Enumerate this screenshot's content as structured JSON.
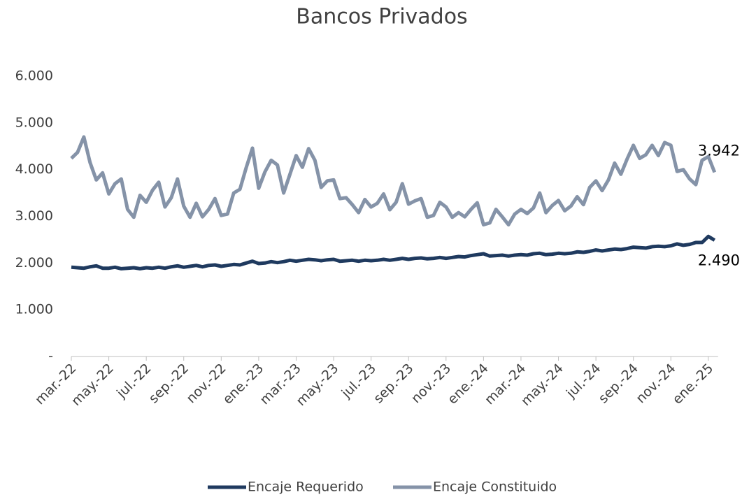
{
  "chart_data": {
    "type": "line",
    "title": "Bancos Privados",
    "categories": [
      "mar.-22",
      null,
      null,
      null,
      null,
      null,
      "may.-22",
      null,
      null,
      null,
      null,
      null,
      "jul.-22",
      null,
      null,
      null,
      null,
      null,
      "sep.-22",
      null,
      null,
      null,
      null,
      null,
      "nov.-22",
      null,
      null,
      null,
      null,
      null,
      "ene.-23",
      null,
      null,
      null,
      null,
      null,
      "mar.-23",
      null,
      null,
      null,
      null,
      null,
      "may.-23",
      null,
      null,
      null,
      null,
      null,
      "jul.-23",
      null,
      null,
      null,
      null,
      null,
      "sep.-23",
      null,
      null,
      null,
      null,
      null,
      "nov.-23",
      null,
      null,
      null,
      null,
      null,
      "ene.-24",
      null,
      null,
      null,
      null,
      null,
      "mar.-24",
      null,
      null,
      null,
      null,
      null,
      "may.-24",
      null,
      null,
      null,
      null,
      null,
      "jul.-24",
      null,
      null,
      null,
      null,
      null,
      "sep.-24",
      null,
      null,
      null,
      null,
      null,
      "nov.-24",
      null,
      null,
      null,
      null,
      null,
      "ene.-25",
      null
    ],
    "series": [
      {
        "name": "Encaje Requerido",
        "color": "#1f3a5f",
        "values": [
          1910,
          1900,
          1890,
          1920,
          1940,
          1890,
          1890,
          1910,
          1880,
          1890,
          1900,
          1880,
          1900,
          1890,
          1910,
          1890,
          1920,
          1940,
          1910,
          1930,
          1950,
          1920,
          1950,
          1960,
          1930,
          1950,
          1970,
          1960,
          2000,
          2040,
          1990,
          2000,
          2030,
          2010,
          2030,
          2060,
          2040,
          2060,
          2080,
          2070,
          2050,
          2070,
          2080,
          2040,
          2050,
          2060,
          2040,
          2060,
          2050,
          2060,
          2080,
          2060,
          2080,
          2100,
          2080,
          2100,
          2110,
          2090,
          2100,
          2120,
          2100,
          2120,
          2140,
          2130,
          2160,
          2180,
          2200,
          2150,
          2160,
          2170,
          2150,
          2170,
          2180,
          2170,
          2200,
          2210,
          2180,
          2190,
          2210,
          2200,
          2210,
          2240,
          2230,
          2250,
          2280,
          2260,
          2280,
          2300,
          2290,
          2310,
          2340,
          2330,
          2320,
          2350,
          2360,
          2350,
          2370,
          2410,
          2380,
          2400,
          2440,
          2440,
          2570,
          2490
        ],
        "value_labels": [
          null,
          null,
          null,
          null,
          null,
          null,
          null,
          null,
          null,
          null,
          null,
          null,
          null,
          null,
          null,
          null,
          null,
          null,
          null,
          null,
          null,
          null,
          null,
          null,
          null,
          null,
          null,
          null,
          null,
          null,
          null,
          null,
          null,
          null,
          null,
          null,
          null,
          null,
          null,
          null,
          null,
          null,
          null,
          null,
          null,
          null,
          null,
          null,
          null,
          null,
          null,
          null,
          null,
          null,
          null,
          null,
          null,
          null,
          null,
          null,
          null,
          null,
          null,
          null,
          null,
          null,
          null,
          null,
          null,
          null,
          null,
          null,
          null,
          null,
          null,
          null,
          null,
          null,
          null,
          null,
          null,
          null,
          null,
          null,
          null,
          null,
          null,
          null,
          null,
          null,
          null,
          null,
          null,
          null,
          null,
          null,
          null,
          null,
          null,
          null,
          null,
          null,
          null,
          "2.490"
        ]
      },
      {
        "name": "Encaje Constituido",
        "color": "#8593a8",
        "values": [
          4240,
          4370,
          4700,
          4150,
          3780,
          3930,
          3480,
          3700,
          3800,
          3150,
          2980,
          3450,
          3300,
          3560,
          3730,
          3200,
          3400,
          3800,
          3220,
          2980,
          3280,
          2990,
          3150,
          3380,
          3020,
          3050,
          3500,
          3580,
          4040,
          4460,
          3600,
          3950,
          4200,
          4100,
          3500,
          3900,
          4300,
          4050,
          4450,
          4200,
          3620,
          3760,
          3780,
          3380,
          3400,
          3250,
          3080,
          3360,
          3200,
          3280,
          3480,
          3140,
          3300,
          3700,
          3260,
          3330,
          3380,
          2980,
          3020,
          3300,
          3200,
          2980,
          3080,
          2990,
          3150,
          3290,
          2820,
          2860,
          3150,
          2990,
          2820,
          3050,
          3150,
          3060,
          3180,
          3500,
          3080,
          3230,
          3340,
          3120,
          3220,
          3420,
          3250,
          3620,
          3760,
          3550,
          3780,
          4140,
          3900,
          4230,
          4520,
          4240,
          4320,
          4520,
          4300,
          4580,
          4520,
          3960,
          4000,
          3800,
          3680,
          4200,
          4280,
          3942
        ],
        "value_labels": [
          null,
          null,
          null,
          null,
          null,
          null,
          null,
          null,
          null,
          null,
          null,
          null,
          null,
          null,
          null,
          null,
          null,
          null,
          null,
          null,
          null,
          null,
          null,
          null,
          null,
          null,
          null,
          null,
          null,
          null,
          null,
          null,
          null,
          null,
          null,
          null,
          null,
          null,
          null,
          null,
          null,
          null,
          null,
          null,
          null,
          null,
          null,
          null,
          null,
          null,
          null,
          null,
          null,
          null,
          null,
          null,
          null,
          null,
          null,
          null,
          null,
          null,
          null,
          null,
          null,
          null,
          null,
          null,
          null,
          null,
          null,
          null,
          null,
          null,
          null,
          null,
          null,
          null,
          null,
          null,
          null,
          null,
          null,
          null,
          null,
          null,
          null,
          null,
          null,
          null,
          null,
          null,
          null,
          null,
          null,
          null,
          null,
          null,
          null,
          null,
          null,
          null,
          null,
          "3.942"
        ]
      }
    ],
    "ylim": [
      0,
      6000
    ],
    "yticks": [
      {
        "value": 0,
        "label": "-"
      },
      {
        "value": 1000,
        "label": "1.000"
      },
      {
        "value": 2000,
        "label": "2.000"
      },
      {
        "value": 3000,
        "label": "3.000"
      },
      {
        "value": 4000,
        "label": "4.000"
      },
      {
        "value": 5000,
        "label": "5.000"
      },
      {
        "value": 6000,
        "label": "6.000"
      }
    ],
    "grid": false,
    "legend": "bottom"
  }
}
